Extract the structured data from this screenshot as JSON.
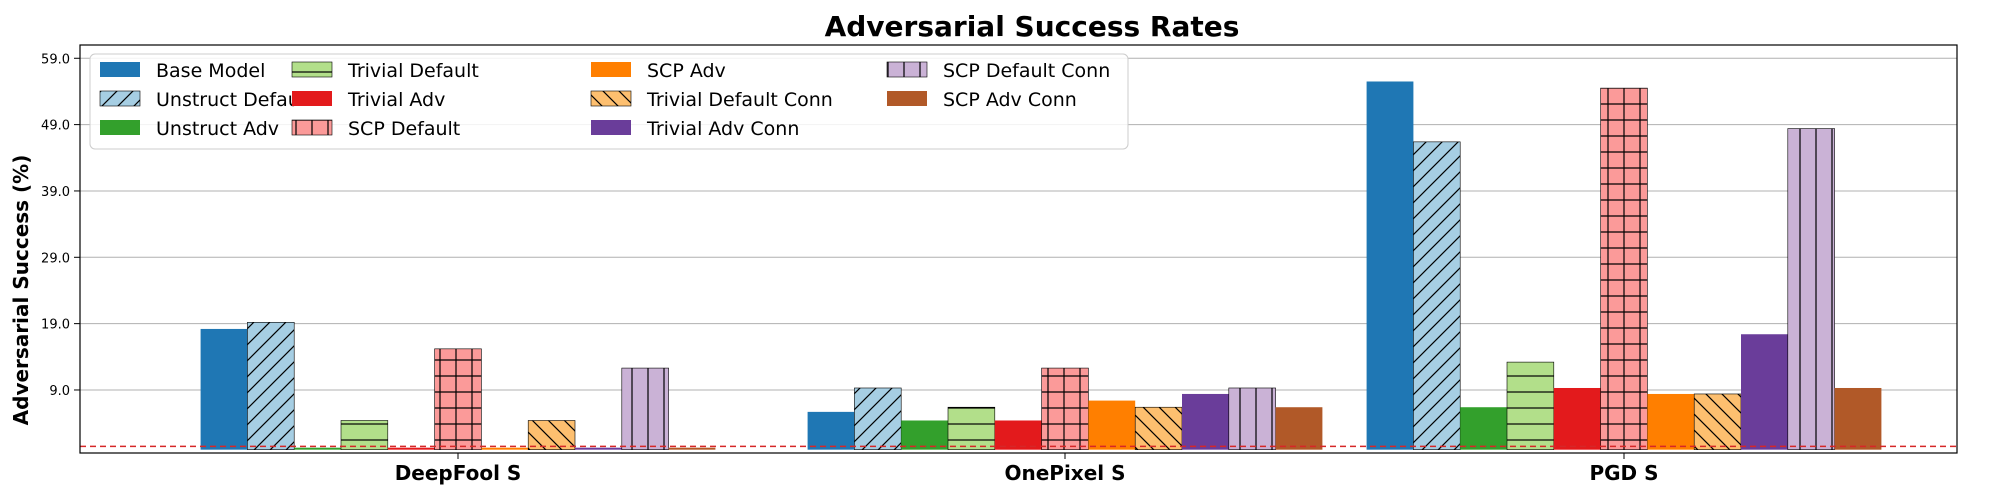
{
  "chart_data": {
    "type": "bar",
    "title": "Adversarial Success Rates",
    "xlabel": "",
    "ylabel": "Adversarial Success (%)",
    "ylim": [
      -0.5,
      61
    ],
    "yticks": [
      "9.0",
      "19.0",
      "29.0",
      "39.0",
      "49.0",
      "59.0"
    ],
    "ytick_values": [
      9,
      19,
      29,
      39,
      49,
      59
    ],
    "grid": "y",
    "legend_position": "top-left",
    "legend_columns": 4,
    "reference_line": {
      "value": 0.5,
      "color": "#d62728",
      "style": "dashed"
    },
    "categories": [
      "DeepFool S",
      "OnePixel S",
      "PGD S"
    ],
    "series": [
      {
        "name": "Base Model",
        "color": "#1f77b4",
        "hatch": "none",
        "values": [
          18.2,
          5.7,
          55.5
        ]
      },
      {
        "name": "Unstruct Default",
        "color": "#a6cee3",
        "hatch": "diagonal",
        "values": [
          19.2,
          9.3,
          46.4
        ]
      },
      {
        "name": "Unstruct Adv",
        "color": "#33a02c",
        "hatch": "none",
        "values": [
          0.3,
          4.4,
          6.4
        ]
      },
      {
        "name": "Trivial Default",
        "color": "#b2df8a",
        "hatch": "horizontal",
        "values": [
          4.4,
          6.4,
          13.2
        ]
      },
      {
        "name": "Trivial Adv",
        "color": "#e31a1c",
        "hatch": "none",
        "values": [
          0.3,
          4.4,
          9.3
        ]
      },
      {
        "name": "SCP Default",
        "color": "#fb9a99",
        "hatch": "grid",
        "values": [
          15.2,
          12.3,
          54.5
        ]
      },
      {
        "name": "SCP Adv",
        "color": "#ff7f00",
        "hatch": "none",
        "values": [
          0.3,
          7.4,
          8.4
        ]
      },
      {
        "name": "Trivial Default Conn",
        "color": "#fdbf6f",
        "hatch": "backslash",
        "values": [
          4.4,
          6.4,
          8.4
        ]
      },
      {
        "name": "Trivial Adv Conn",
        "color": "#6a3d9a",
        "hatch": "none",
        "values": [
          0.3,
          8.4,
          17.4
        ]
      },
      {
        "name": "SCP Default Conn",
        "color": "#cab2d6",
        "hatch": "vertical",
        "values": [
          12.3,
          9.3,
          48.4
        ]
      },
      {
        "name": "SCP Adv Conn",
        "color": "#b15928",
        "hatch": "none",
        "values": [
          0.3,
          6.4,
          9.3
        ]
      }
    ]
  }
}
